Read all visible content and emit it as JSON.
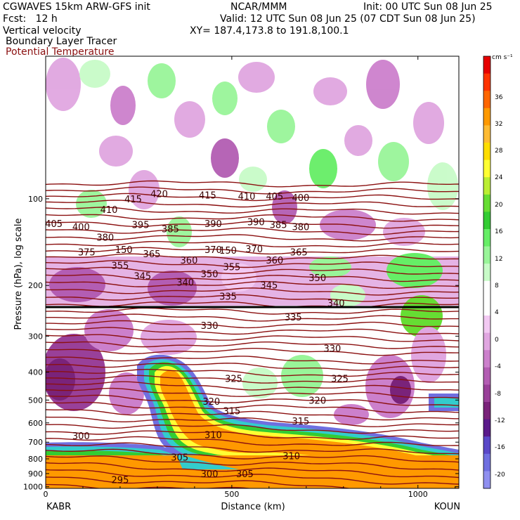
{
  "header": {
    "model": "CGWAVES 15km ARW-GFS init",
    "forecast": "Fcst:   12 h",
    "center": "NCAR/MMM",
    "valid": "Valid: 12 UTC Sun 08 Jun 25 (07 CDT Sun 08 Jun 25)",
    "xy": "XY= 187.4,173.8 to 191.8,100.1",
    "init": "Init: 00 UTC Sun 08 Jun 25",
    "field1": "Vertical velocity",
    "field2": "Boundary Layer Tracer",
    "field3": "Potential Temperature"
  },
  "chart_data": {
    "type": "heatmap",
    "xlabel": "Distance (km)",
    "ylabel": "Pressure (hPa), log scale",
    "x_ticks": [
      "0",
      "500",
      "1000"
    ],
    "x_range_km": [
      0,
      1110
    ],
    "x_end_labels": {
      "left": "KABR",
      "right": "KOUN"
    },
    "y_ticks": [
      "100",
      "200",
      "300",
      "400",
      "500",
      "600",
      "700",
      "800",
      "900",
      "1000"
    ],
    "y_range_hpa": [
      1013,
      32
    ],
    "y_scale": "log",
    "colorbar": {
      "unit": "cm s⁻¹",
      "tick_labels": [
        "36",
        "32",
        "28",
        "24",
        "20",
        "16",
        "12",
        "8",
        "4",
        "0",
        "-4",
        "-8",
        "-12",
        "-16",
        "-20"
      ],
      "colors": [
        "#e60000",
        "#ff3300",
        "#ff6600",
        "#ff9900",
        "#ffbb33",
        "#ffdd00",
        "#ffff33",
        "#bbee33",
        "#66dd33",
        "#33cc33",
        "#66ee66",
        "#99f599",
        "#c8fbc8",
        "#ffffff",
        "#ffffff",
        "#f2c9f2",
        "#e0a6e0",
        "#cc80cc",
        "#b35db3",
        "#994099",
        "#7a237a",
        "#5a1a8a",
        "#5a48c8",
        "#6f6fe0",
        "#9090f0"
      ]
    },
    "theta_labels": [
      {
        "v": "415",
        "x": 235,
        "p": 100
      },
      {
        "v": "420",
        "x": 305,
        "p": 96
      },
      {
        "v": "415",
        "x": 435,
        "p": 97
      },
      {
        "v": "410",
        "x": 540,
        "p": 98
      },
      {
        "v": "405",
        "x": 615,
        "p": 98
      },
      {
        "v": "400",
        "x": 685,
        "p": 99
      },
      {
        "v": "410",
        "x": 170,
        "p": 109
      },
      {
        "v": "405",
        "x": 22,
        "p": 122
      },
      {
        "v": "400",
        "x": 95,
        "p": 125
      },
      {
        "v": "395",
        "x": 255,
        "p": 123
      },
      {
        "v": "385",
        "x": 335,
        "p": 127
      },
      {
        "v": "390",
        "x": 450,
        "p": 122
      },
      {
        "v": "390",
        "x": 565,
        "p": 120
      },
      {
        "v": "385",
        "x": 625,
        "p": 123
      },
      {
        "v": "380",
        "x": 685,
        "p": 125
      },
      {
        "v": "380",
        "x": 160,
        "p": 136
      },
      {
        "v": "375",
        "x": 110,
        "p": 153
      },
      {
        "v": "150",
        "x": 210,
        "p": 150
      },
      {
        "v": "365",
        "x": 285,
        "p": 155
      },
      {
        "v": "370",
        "x": 450,
        "p": 150
      },
      {
        "v": "370",
        "x": 560,
        "p": 149
      },
      {
        "v": "150",
        "x": 490,
        "p": 151
      },
      {
        "v": "365",
        "x": 680,
        "p": 153
      },
      {
        "v": "360",
        "x": 385,
        "p": 163
      },
      {
        "v": "360",
        "x": 615,
        "p": 163
      },
      {
        "v": "355",
        "x": 200,
        "p": 170
      },
      {
        "v": "355",
        "x": 500,
        "p": 172
      },
      {
        "v": "345",
        "x": 260,
        "p": 185
      },
      {
        "v": "350",
        "x": 440,
        "p": 182
      },
      {
        "v": "340",
        "x": 375,
        "p": 195
      },
      {
        "v": "350",
        "x": 730,
        "p": 188
      },
      {
        "v": "345",
        "x": 600,
        "p": 199
      },
      {
        "v": "335",
        "x": 490,
        "p": 218
      },
      {
        "v": "340",
        "x": 780,
        "p": 230
      },
      {
        "v": "335",
        "x": 665,
        "p": 257
      },
      {
        "v": "330",
        "x": 440,
        "p": 275
      },
      {
        "v": "330",
        "x": 770,
        "p": 330
      },
      {
        "v": "325",
        "x": 505,
        "p": 420
      },
      {
        "v": "325",
        "x": 790,
        "p": 420
      },
      {
        "v": "320",
        "x": 445,
        "p": 505
      },
      {
        "v": "320",
        "x": 730,
        "p": 500
      },
      {
        "v": "315",
        "x": 500,
        "p": 545
      },
      {
        "v": "315",
        "x": 685,
        "p": 590
      },
      {
        "v": "310",
        "x": 450,
        "p": 660
      },
      {
        "v": "310",
        "x": 660,
        "p": 780
      },
      {
        "v": "300",
        "x": 95,
        "p": 665
      },
      {
        "v": "305",
        "x": 360,
        "p": 790
      },
      {
        "v": "300",
        "x": 440,
        "p": 900
      },
      {
        "v": "305",
        "x": 535,
        "p": 900
      },
      {
        "v": "295",
        "x": 200,
        "p": 945
      }
    ]
  }
}
